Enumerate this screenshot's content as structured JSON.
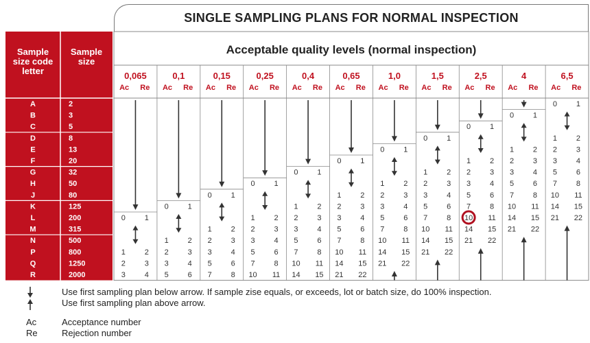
{
  "title": "SINGLE SAMPLING PLANS FOR NORMAL INSPECTION",
  "aql_header": "Acceptable quality levels (normal inspection)",
  "col_header_code": [
    "Sample",
    "size code",
    "letter"
  ],
  "col_header_size": [
    "Sample",
    "size"
  ],
  "ac_label": "Ac",
  "re_label": "Re",
  "aql_levels": [
    "0,065",
    "0,1",
    "0,15",
    "0,25",
    "0,4",
    "0,65",
    "1,0",
    "1,5",
    "2,5",
    "4",
    "6,5"
  ],
  "rows": [
    {
      "code": "A",
      "size": "2"
    },
    {
      "code": "B",
      "size": "3"
    },
    {
      "code": "C",
      "size": "5"
    },
    {
      "code": "D",
      "size": "8"
    },
    {
      "code": "E",
      "size": "13"
    },
    {
      "code": "F",
      "size": "20"
    },
    {
      "code": "G",
      "size": "32"
    },
    {
      "code": "H",
      "size": "50"
    },
    {
      "code": "J",
      "size": "80"
    },
    {
      "code": "K",
      "size": "125"
    },
    {
      "code": "L",
      "size": "200"
    },
    {
      "code": "M",
      "size": "315"
    },
    {
      "code": "N",
      "size": "500"
    },
    {
      "code": "P",
      "size": "800"
    },
    {
      "code": "Q",
      "size": "1250"
    },
    {
      "code": "R",
      "size": "2000"
    }
  ],
  "plans": [
    {
      "col": 0,
      "first_row": 10,
      "ac": "0",
      "re": "1"
    },
    {
      "col": 0,
      "first_row": 13,
      "ac": "1",
      "re": "2"
    },
    {
      "col": 0,
      "first_row": 14,
      "ac": "2",
      "re": "3"
    },
    {
      "col": 0,
      "first_row": 15,
      "ac": "3",
      "re": "4"
    },
    {
      "col": 1,
      "first_row": 9,
      "ac": "0",
      "re": "1"
    },
    {
      "col": 1,
      "first_row": 12,
      "ac": "1",
      "re": "2"
    },
    {
      "col": 1,
      "first_row": 13,
      "ac": "2",
      "re": "3"
    },
    {
      "col": 1,
      "first_row": 14,
      "ac": "3",
      "re": "4"
    },
    {
      "col": 1,
      "first_row": 15,
      "ac": "5",
      "re": "6"
    },
    {
      "col": 2,
      "first_row": 8,
      "ac": "0",
      "re": "1"
    },
    {
      "col": 2,
      "first_row": 11,
      "ac": "1",
      "re": "2"
    },
    {
      "col": 2,
      "first_row": 12,
      "ac": "2",
      "re": "3"
    },
    {
      "col": 2,
      "first_row": 13,
      "ac": "3",
      "re": "4"
    },
    {
      "col": 2,
      "first_row": 14,
      "ac": "5",
      "re": "6"
    },
    {
      "col": 2,
      "first_row": 15,
      "ac": "7",
      "re": "8"
    },
    {
      "col": 3,
      "first_row": 7,
      "ac": "0",
      "re": "1"
    },
    {
      "col": 3,
      "first_row": 10,
      "ac": "1",
      "re": "2"
    },
    {
      "col": 3,
      "first_row": 11,
      "ac": "2",
      "re": "3"
    },
    {
      "col": 3,
      "first_row": 12,
      "ac": "3",
      "re": "4"
    },
    {
      "col": 3,
      "first_row": 13,
      "ac": "5",
      "re": "6"
    },
    {
      "col": 3,
      "first_row": 14,
      "ac": "7",
      "re": "8"
    },
    {
      "col": 3,
      "first_row": 15,
      "ac": "10",
      "re": "11"
    },
    {
      "col": 4,
      "first_row": 6,
      "ac": "0",
      "re": "1"
    },
    {
      "col": 4,
      "first_row": 9,
      "ac": "1",
      "re": "2"
    },
    {
      "col": 4,
      "first_row": 10,
      "ac": "2",
      "re": "3"
    },
    {
      "col": 4,
      "first_row": 11,
      "ac": "3",
      "re": "4"
    },
    {
      "col": 4,
      "first_row": 12,
      "ac": "5",
      "re": "6"
    },
    {
      "col": 4,
      "first_row": 13,
      "ac": "7",
      "re": "8"
    },
    {
      "col": 4,
      "first_row": 14,
      "ac": "10",
      "re": "11"
    },
    {
      "col": 4,
      "first_row": 15,
      "ac": "14",
      "re": "15"
    },
    {
      "col": 5,
      "first_row": 5,
      "ac": "0",
      "re": "1"
    },
    {
      "col": 5,
      "first_row": 8,
      "ac": "1",
      "re": "2"
    },
    {
      "col": 5,
      "first_row": 9,
      "ac": "2",
      "re": "3"
    },
    {
      "col": 5,
      "first_row": 10,
      "ac": "3",
      "re": "4"
    },
    {
      "col": 5,
      "first_row": 11,
      "ac": "5",
      "re": "6"
    },
    {
      "col": 5,
      "first_row": 12,
      "ac": "7",
      "re": "8"
    },
    {
      "col": 5,
      "first_row": 13,
      "ac": "10",
      "re": "11"
    },
    {
      "col": 5,
      "first_row": 14,
      "ac": "14",
      "re": "15"
    },
    {
      "col": 5,
      "first_row": 15,
      "ac": "21",
      "re": "22"
    },
    {
      "col": 6,
      "first_row": 4,
      "ac": "0",
      "re": "1"
    },
    {
      "col": 6,
      "first_row": 7,
      "ac": "1",
      "re": "2"
    },
    {
      "col": 6,
      "first_row": 8,
      "ac": "2",
      "re": "3"
    },
    {
      "col": 6,
      "first_row": 9,
      "ac": "3",
      "re": "4"
    },
    {
      "col": 6,
      "first_row": 10,
      "ac": "5",
      "re": "6"
    },
    {
      "col": 6,
      "first_row": 11,
      "ac": "7",
      "re": "8"
    },
    {
      "col": 6,
      "first_row": 12,
      "ac": "10",
      "re": "11"
    },
    {
      "col": 6,
      "first_row": 13,
      "ac": "14",
      "re": "15"
    },
    {
      "col": 6,
      "first_row": 14,
      "ac": "21",
      "re": "22"
    },
    {
      "col": 7,
      "first_row": 3,
      "ac": "0",
      "re": "1"
    },
    {
      "col": 7,
      "first_row": 6,
      "ac": "1",
      "re": "2"
    },
    {
      "col": 7,
      "first_row": 7,
      "ac": "2",
      "re": "3"
    },
    {
      "col": 7,
      "first_row": 8,
      "ac": "3",
      "re": "4"
    },
    {
      "col": 7,
      "first_row": 9,
      "ac": "5",
      "re": "6"
    },
    {
      "col": 7,
      "first_row": 10,
      "ac": "7",
      "re": "8"
    },
    {
      "col": 7,
      "first_row": 11,
      "ac": "10",
      "re": "11"
    },
    {
      "col": 7,
      "first_row": 12,
      "ac": "14",
      "re": "15"
    },
    {
      "col": 7,
      "first_row": 13,
      "ac": "21",
      "re": "22"
    },
    {
      "col": 8,
      "first_row": 2,
      "ac": "0",
      "re": "1"
    },
    {
      "col": 8,
      "first_row": 5,
      "ac": "1",
      "re": "2"
    },
    {
      "col": 8,
      "first_row": 6,
      "ac": "2",
      "re": "3"
    },
    {
      "col": 8,
      "first_row": 7,
      "ac": "3",
      "re": "4"
    },
    {
      "col": 8,
      "first_row": 8,
      "ac": "5",
      "re": "6"
    },
    {
      "col": 8,
      "first_row": 9,
      "ac": "7",
      "re": "8"
    },
    {
      "col": 8,
      "first_row": 10,
      "ac": "10",
      "re": "11"
    },
    {
      "col": 8,
      "first_row": 11,
      "ac": "14",
      "re": "15"
    },
    {
      "col": 8,
      "first_row": 12,
      "ac": "21",
      "re": "22"
    },
    {
      "col": 9,
      "first_row": 1,
      "ac": "0",
      "re": "1"
    },
    {
      "col": 9,
      "first_row": 4,
      "ac": "1",
      "re": "2"
    },
    {
      "col": 9,
      "first_row": 5,
      "ac": "2",
      "re": "3"
    },
    {
      "col": 9,
      "first_row": 6,
      "ac": "3",
      "re": "4"
    },
    {
      "col": 9,
      "first_row": 7,
      "ac": "5",
      "re": "6"
    },
    {
      "col": 9,
      "first_row": 8,
      "ac": "7",
      "re": "8"
    },
    {
      "col": 9,
      "first_row": 9,
      "ac": "10",
      "re": "11"
    },
    {
      "col": 9,
      "first_row": 10,
      "ac": "14",
      "re": "15"
    },
    {
      "col": 9,
      "first_row": 11,
      "ac": "21",
      "re": "22"
    },
    {
      "col": 10,
      "first_row": 0,
      "ac": "0",
      "re": "1"
    },
    {
      "col": 10,
      "first_row": 3,
      "ac": "1",
      "re": "2"
    },
    {
      "col": 10,
      "first_row": 4,
      "ac": "2",
      "re": "3"
    },
    {
      "col": 10,
      "first_row": 5,
      "ac": "3",
      "re": "4"
    },
    {
      "col": 10,
      "first_row": 6,
      "ac": "5",
      "re": "6"
    },
    {
      "col": 10,
      "first_row": 7,
      "ac": "7",
      "re": "8"
    },
    {
      "col": 10,
      "first_row": 8,
      "ac": "10",
      "re": "11"
    },
    {
      "col": 10,
      "first_row": 9,
      "ac": "14",
      "re": "15"
    },
    {
      "col": 10,
      "first_row": 10,
      "ac": "21",
      "re": "22"
    }
  ],
  "arrows": [
    {
      "col": 0,
      "type": "down",
      "from_row": 0,
      "to_row": 9
    },
    {
      "col": 0,
      "type": "both",
      "from_row": 11,
      "to_row": 12
    },
    {
      "col": 1,
      "type": "down",
      "from_row": 0,
      "to_row": 8
    },
    {
      "col": 1,
      "type": "both",
      "from_row": 10,
      "to_row": 11
    },
    {
      "col": 2,
      "type": "down",
      "from_row": 0,
      "to_row": 7
    },
    {
      "col": 2,
      "type": "both",
      "from_row": 9,
      "to_row": 10
    },
    {
      "col": 3,
      "type": "down",
      "from_row": 0,
      "to_row": 6
    },
    {
      "col": 3,
      "type": "both",
      "from_row": 8,
      "to_row": 9
    },
    {
      "col": 4,
      "type": "down",
      "from_row": 0,
      "to_row": 5
    },
    {
      "col": 4,
      "type": "both",
      "from_row": 7,
      "to_row": 8
    },
    {
      "col": 5,
      "type": "down",
      "from_row": 0,
      "to_row": 4
    },
    {
      "col": 5,
      "type": "both",
      "from_row": 6,
      "to_row": 7
    },
    {
      "col": 6,
      "type": "down",
      "from_row": 0,
      "to_row": 3
    },
    {
      "col": 6,
      "type": "both",
      "from_row": 5,
      "to_row": 6
    },
    {
      "col": 6,
      "type": "up",
      "from_row": 15,
      "to_row": 15
    },
    {
      "col": 7,
      "type": "down",
      "from_row": 0,
      "to_row": 2
    },
    {
      "col": 7,
      "type": "both",
      "from_row": 4,
      "to_row": 5
    },
    {
      "col": 7,
      "type": "up",
      "from_row": 14,
      "to_row": 15
    },
    {
      "col": 8,
      "type": "down",
      "from_row": 0,
      "to_row": 1
    },
    {
      "col": 8,
      "type": "both",
      "from_row": 3,
      "to_row": 4
    },
    {
      "col": 8,
      "type": "up",
      "from_row": 13,
      "to_row": 15
    },
    {
      "col": 9,
      "type": "down",
      "from_row": 0,
      "to_row": 0
    },
    {
      "col": 9,
      "type": "both",
      "from_row": 2,
      "to_row": 3
    },
    {
      "col": 9,
      "type": "up",
      "from_row": 12,
      "to_row": 15
    },
    {
      "col": 10,
      "type": "both",
      "from_row": 1,
      "to_row": 2
    },
    {
      "col": 10,
      "type": "up",
      "from_row": 11,
      "to_row": 15
    }
  ],
  "highlight": {
    "col": 8,
    "row": 10,
    "value": "10"
  },
  "legend": {
    "arrow_line1": "Use first sampling plan below arrow. If sample zise equals, or exceeds, lot or batch size, do 100% inspection.",
    "arrow_line2": "Use first sampling plan above arrow.",
    "ac_key": "Ac",
    "ac_text": "Acceptance number",
    "re_key": "Re",
    "re_text": "Rejection number"
  },
  "colors": {
    "header_red": "#c0111f",
    "aql_red": "#c0111f",
    "grid": "#888888",
    "highlight_ring": "#b01020"
  },
  "icons": [
    "down-arrow-icon",
    "up-arrow-icon"
  ]
}
